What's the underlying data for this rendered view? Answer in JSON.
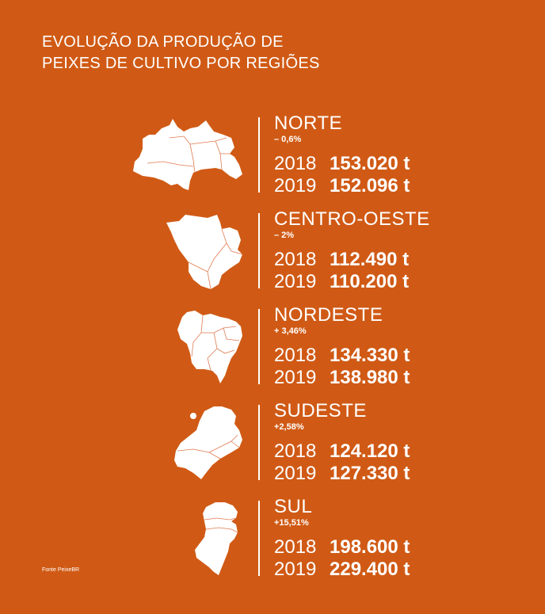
{
  "title": {
    "line1": "EVOLUÇÃO DA PRODUÇÃO DE",
    "line2": "PEIXES DE CULTIVO POR REGIÕES"
  },
  "regions": [
    {
      "name": "NORTE",
      "change": "– 0,6%",
      "rows": [
        {
          "year": "2018",
          "value": "153.020 t"
        },
        {
          "year": "2019",
          "value": "152.096 t"
        }
      ]
    },
    {
      "name": "CENTRO-OESTE",
      "change": "– 2%",
      "rows": [
        {
          "year": "2018",
          "value": "112.490 t"
        },
        {
          "year": "2019",
          "value": "110.200 t"
        }
      ]
    },
    {
      "name": "NORDESTE",
      "change": "+ 3,46%",
      "rows": [
        {
          "year": "2018",
          "value": "134.330 t"
        },
        {
          "year": "2019",
          "value": "138.980 t"
        }
      ]
    },
    {
      "name": "SUDESTE",
      "change": "+2,58%",
      "rows": [
        {
          "year": "2018",
          "value": "124.120 t"
        },
        {
          "year": "2019",
          "value": "127.330 t"
        }
      ]
    },
    {
      "name": "SUL",
      "change": "+15,51%",
      "rows": [
        {
          "year": "2018",
          "value": "198.600 t"
        },
        {
          "year": "2019",
          "value": "229.400 t"
        }
      ]
    }
  ],
  "source": "Fonte PeixeBR",
  "colors": {
    "background": "#d05a15",
    "text": "#ffffff",
    "map_lines": "#e07a50"
  }
}
